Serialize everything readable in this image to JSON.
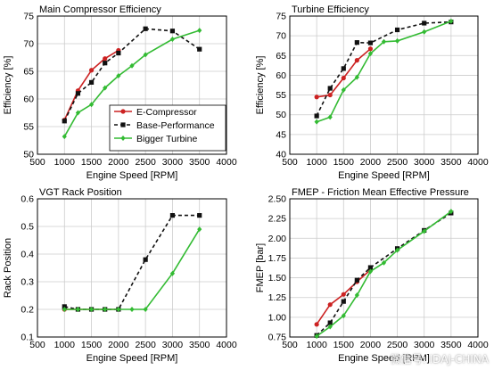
{
  "watermark": "微信号: IDAJ-CHINA",
  "colors": {
    "e_compressor": "#cc2222",
    "base_performance": "#111111",
    "bigger_turbine": "#33bb33"
  },
  "chart_data": [
    {
      "type": "line",
      "title": "Main Compressor Efficiency",
      "xlabel": "Engine Speed [RPM]",
      "ylabel": "Efficiency [%]",
      "xlim": [
        500,
        4000
      ],
      "ylim": [
        50,
        75
      ],
      "xticks": [
        "500",
        "1000",
        "1500",
        "2000",
        "2500",
        "3000",
        "3500",
        "4000"
      ],
      "yticks": [
        "50",
        "55",
        "60",
        "65",
        "70",
        "75"
      ],
      "grid": true,
      "legend": {
        "placement": "lower-right",
        "entries": [
          "E-Compressor",
          "Base-Performance",
          "Bigger Turbine"
        ]
      },
      "series": [
        {
          "name": "E-Compressor",
          "x": [
            1000,
            1250,
            1500,
            1750,
            2000
          ],
          "y": [
            56.2,
            61.5,
            65.2,
            67.3,
            68.8
          ]
        },
        {
          "name": "Base-Performance",
          "x": [
            1000,
            1250,
            1500,
            1750,
            2000,
            2500,
            3000,
            3500
          ],
          "y": [
            56.0,
            61.0,
            63.0,
            66.5,
            68.3,
            72.7,
            72.3,
            69.0
          ]
        },
        {
          "name": "Bigger Turbine",
          "x": [
            1000,
            1250,
            1500,
            1750,
            2000,
            2250,
            2500,
            3000,
            3500
          ],
          "y": [
            53.2,
            57.5,
            59.0,
            62.0,
            64.2,
            66.0,
            68.0,
            70.8,
            72.4
          ]
        }
      ]
    },
    {
      "type": "line",
      "title": "Turbine Efficiency",
      "xlabel": "Engine Speed [RPM]",
      "ylabel": "Efficiency [%]",
      "xlim": [
        500,
        4000
      ],
      "ylim": [
        40,
        75
      ],
      "xticks": [
        "500",
        "1000",
        "1500",
        "2000",
        "2500",
        "3000",
        "3500",
        "4000"
      ],
      "yticks": [
        "40",
        "45",
        "50",
        "55",
        "60",
        "65",
        "70",
        "75"
      ],
      "grid": true,
      "series": [
        {
          "name": "E-Compressor",
          "x": [
            1000,
            1250,
            1500,
            1750,
            2000
          ],
          "y": [
            54.5,
            55.0,
            59.3,
            63.8,
            66.7
          ]
        },
        {
          "name": "Base-Performance",
          "x": [
            1000,
            1250,
            1500,
            1750,
            2000,
            2500,
            3000,
            3500
          ],
          "y": [
            49.7,
            56.7,
            61.7,
            68.3,
            68.2,
            71.5,
            73.2,
            73.5
          ]
        },
        {
          "name": "Bigger Turbine",
          "x": [
            1000,
            1250,
            1500,
            1750,
            2000,
            2250,
            2500,
            3000,
            3500
          ],
          "y": [
            48.2,
            49.4,
            56.3,
            59.5,
            65.5,
            68.5,
            68.7,
            71.0,
            73.7
          ]
        }
      ]
    },
    {
      "type": "line",
      "title": "VGT Rack Position",
      "xlabel": "Engine Speed [RPM]",
      "ylabel": "Rack Position",
      "xlim": [
        500,
        4000
      ],
      "ylim": [
        0.1,
        0.6
      ],
      "xticks": [
        "500",
        "1000",
        "1500",
        "2000",
        "2500",
        "3000",
        "3500",
        "4000"
      ],
      "yticks": [
        "0.1",
        "0.2",
        "0.3",
        "0.4",
        "0.5",
        "0.6"
      ],
      "grid": true,
      "series": [
        {
          "name": "E-Compressor",
          "x": [
            1000,
            1250,
            1500,
            1750,
            2000
          ],
          "y": [
            0.2,
            0.2,
            0.2,
            0.2,
            0.2
          ]
        },
        {
          "name": "Base-Performance",
          "x": [
            1000,
            1250,
            1500,
            1750,
            2000,
            2500,
            3000,
            3500
          ],
          "y": [
            0.21,
            0.2,
            0.2,
            0.2,
            0.2,
            0.38,
            0.54,
            0.54
          ]
        },
        {
          "name": "Bigger Turbine",
          "x": [
            1000,
            1250,
            1500,
            1750,
            2000,
            2250,
            2500,
            3000,
            3500
          ],
          "y": [
            0.2,
            0.2,
            0.2,
            0.2,
            0.2,
            0.2,
            0.2,
            0.33,
            0.49
          ]
        }
      ]
    },
    {
      "type": "line",
      "title": "FMEP - Friction Mean Effective Pressure",
      "xlabel": "Engine Speed [RPM]",
      "ylabel": "FMEP [bar]",
      "xlim": [
        500,
        4000
      ],
      "ylim": [
        0.75,
        2.5
      ],
      "xticks": [
        "500",
        "1000",
        "1500",
        "2000",
        "2500",
        "3000",
        "3500",
        "4000"
      ],
      "yticks": [
        "0.75",
        "1.00",
        "1.25",
        "1.50",
        "1.75",
        "2.00",
        "2.25",
        "2.50"
      ],
      "grid": true,
      "series": [
        {
          "name": "E-Compressor",
          "x": [
            1000,
            1250,
            1500,
            1750,
            2000
          ],
          "y": [
            0.91,
            1.16,
            1.29,
            1.45,
            1.6
          ]
        },
        {
          "name": "Base-Performance",
          "x": [
            1000,
            1250,
            1500,
            1750,
            2000,
            2500,
            3000,
            3500
          ],
          "y": [
            0.77,
            0.93,
            1.2,
            1.47,
            1.63,
            1.87,
            2.1,
            2.32
          ]
        },
        {
          "name": "Bigger Turbine",
          "x": [
            1000,
            1250,
            1500,
            1750,
            2000,
            2250,
            2500,
            3000,
            3500
          ],
          "y": [
            0.76,
            0.88,
            1.02,
            1.28,
            1.58,
            1.69,
            1.85,
            2.09,
            2.34
          ]
        }
      ]
    }
  ]
}
